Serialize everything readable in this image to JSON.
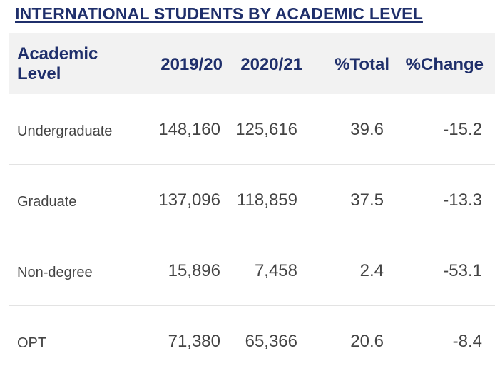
{
  "title": "INTERNATIONAL STUDENTS BY ACADEMIC LEVEL",
  "columns": {
    "level": "Academic Level",
    "y1": "2019/20",
    "y2": "2020/21",
    "total": "%Total",
    "change": "%Change"
  },
  "rows": [
    {
      "level": "Undergraduate",
      "y1": "148,160",
      "y2": "125,616",
      "total": "39.6",
      "change": "-15.2"
    },
    {
      "level": "Graduate",
      "y1": "137,096",
      "y2": "118,859",
      "total": "37.5",
      "change": "-13.3"
    },
    {
      "level": "Non-degree",
      "y1": "15,896",
      "y2": "7,458",
      "total": "2.4",
      "change": "-53.1"
    },
    {
      "level": "OPT",
      "y1": "71,380",
      "y2": "65,366",
      "total": "20.6",
      "change": "-8.4"
    }
  ]
}
